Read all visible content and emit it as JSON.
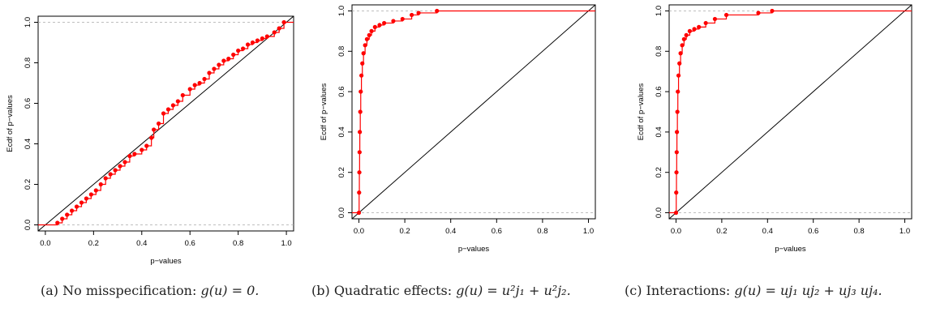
{
  "chart_data": [
    {
      "type": "scatter",
      "subtype": "ecdf-step",
      "xlabel": "p−values",
      "ylabel": "Ecdf of p−values",
      "xlim": [
        -0.03,
        1.03
      ],
      "ylim": [
        -0.03,
        1.03
      ],
      "xticks": [
        "0.0",
        "0.2",
        "0.4",
        "0.6",
        "0.8",
        "1.0"
      ],
      "yticks": [
        "0.0",
        "0.2",
        "0.4",
        "0.6",
        "0.8",
        "1.0"
      ],
      "reference_line": "y = x",
      "hlines": [
        0,
        1
      ],
      "series_color": "#ff0000",
      "points": [
        [
          0.05,
          0.01
        ],
        [
          0.07,
          0.03
        ],
        [
          0.09,
          0.05
        ],
        [
          0.11,
          0.07
        ],
        [
          0.13,
          0.09
        ],
        [
          0.15,
          0.11
        ],
        [
          0.17,
          0.13
        ],
        [
          0.19,
          0.15
        ],
        [
          0.21,
          0.17
        ],
        [
          0.23,
          0.2
        ],
        [
          0.25,
          0.23
        ],
        [
          0.27,
          0.25
        ],
        [
          0.29,
          0.27
        ],
        [
          0.31,
          0.29
        ],
        [
          0.33,
          0.31
        ],
        [
          0.35,
          0.34
        ],
        [
          0.37,
          0.35
        ],
        [
          0.4,
          0.37
        ],
        [
          0.42,
          0.39
        ],
        [
          0.44,
          0.43
        ],
        [
          0.45,
          0.47
        ],
        [
          0.47,
          0.5
        ],
        [
          0.49,
          0.55
        ],
        [
          0.51,
          0.57
        ],
        [
          0.53,
          0.59
        ],
        [
          0.55,
          0.61
        ],
        [
          0.57,
          0.64
        ],
        [
          0.6,
          0.67
        ],
        [
          0.62,
          0.69
        ],
        [
          0.64,
          0.7
        ],
        [
          0.66,
          0.72
        ],
        [
          0.68,
          0.75
        ],
        [
          0.7,
          0.77
        ],
        [
          0.72,
          0.79
        ],
        [
          0.74,
          0.81
        ],
        [
          0.76,
          0.82
        ],
        [
          0.78,
          0.84
        ],
        [
          0.8,
          0.86
        ],
        [
          0.82,
          0.87
        ],
        [
          0.84,
          0.89
        ],
        [
          0.86,
          0.9
        ],
        [
          0.88,
          0.91
        ],
        [
          0.9,
          0.92
        ],
        [
          0.92,
          0.93
        ],
        [
          0.95,
          0.95
        ],
        [
          0.97,
          0.97
        ],
        [
          0.99,
          1.0
        ]
      ]
    },
    {
      "type": "scatter",
      "subtype": "ecdf-step",
      "xlabel": "p−values",
      "ylabel": "Ecdf of p−values",
      "xlim": [
        -0.03,
        1.03
      ],
      "ylim": [
        -0.03,
        1.03
      ],
      "xticks": [
        "0.0",
        "0.2",
        "0.4",
        "0.6",
        "0.8",
        "1.0"
      ],
      "yticks": [
        "0.0",
        "0.2",
        "0.4",
        "0.6",
        "0.8",
        "1.0"
      ],
      "reference_line": "y = x",
      "hlines": [
        0,
        1
      ],
      "series_color": "#ff0000",
      "points": [
        [
          0.0,
          0.0
        ],
        [
          0.001,
          0.1
        ],
        [
          0.002,
          0.2
        ],
        [
          0.003,
          0.3
        ],
        [
          0.004,
          0.4
        ],
        [
          0.006,
          0.5
        ],
        [
          0.008,
          0.6
        ],
        [
          0.011,
          0.68
        ],
        [
          0.015,
          0.74
        ],
        [
          0.02,
          0.79
        ],
        [
          0.027,
          0.83
        ],
        [
          0.035,
          0.86
        ],
        [
          0.045,
          0.88
        ],
        [
          0.055,
          0.9
        ],
        [
          0.07,
          0.92
        ],
        [
          0.09,
          0.93
        ],
        [
          0.11,
          0.94
        ],
        [
          0.15,
          0.95
        ],
        [
          0.19,
          0.96
        ],
        [
          0.23,
          0.98
        ],
        [
          0.26,
          0.99
        ],
        [
          0.34,
          1.0
        ]
      ]
    },
    {
      "type": "scatter",
      "subtype": "ecdf-step",
      "xlabel": "p−values",
      "ylabel": "Ecdf of p−values",
      "xlim": [
        -0.03,
        1.03
      ],
      "ylim": [
        -0.03,
        1.03
      ],
      "xticks": [
        "0.0",
        "0.2",
        "0.4",
        "0.6",
        "0.8",
        "1.0"
      ],
      "yticks": [
        "0.0",
        "0.2",
        "0.4",
        "0.6",
        "0.8",
        "1.0"
      ],
      "reference_line": "y = x",
      "hlines": [
        0,
        1
      ],
      "series_color": "#ff0000",
      "points": [
        [
          0.0,
          0.0
        ],
        [
          0.001,
          0.1
        ],
        [
          0.002,
          0.2
        ],
        [
          0.003,
          0.3
        ],
        [
          0.004,
          0.4
        ],
        [
          0.006,
          0.5
        ],
        [
          0.008,
          0.6
        ],
        [
          0.011,
          0.68
        ],
        [
          0.015,
          0.74
        ],
        [
          0.02,
          0.79
        ],
        [
          0.027,
          0.83
        ],
        [
          0.035,
          0.86
        ],
        [
          0.045,
          0.88
        ],
        [
          0.06,
          0.9
        ],
        [
          0.08,
          0.91
        ],
        [
          0.1,
          0.92
        ],
        [
          0.13,
          0.94
        ],
        [
          0.17,
          0.96
        ],
        [
          0.22,
          0.98
        ],
        [
          0.36,
          0.99
        ],
        [
          0.42,
          1.0
        ]
      ]
    }
  ],
  "captions": [
    {
      "label": "(a) No misspecification: ",
      "math": "g(u) = 0."
    },
    {
      "label": "(b) Quadratic effects: ",
      "math": "g(u) = u²j₁ + u²j₂."
    },
    {
      "label": "(c) Interactions: ",
      "math": "g(u) = uj₁ uj₂ + uj₃ uj₄."
    }
  ]
}
